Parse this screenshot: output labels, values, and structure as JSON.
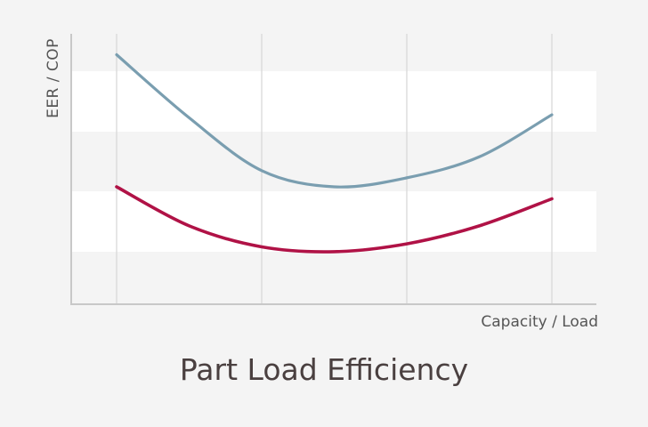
{
  "chart_data": {
    "type": "line",
    "title": "Part Load Efficiency",
    "xlabel": "Capacity / Load",
    "ylabel": "EER / COP",
    "xlim": [
      0,
      3
    ],
    "ylim": [
      0,
      4
    ],
    "grid": true,
    "x": [
      0,
      0.5,
      1,
      1.5,
      2,
      2.5,
      3
    ],
    "series": [
      {
        "values": [
          3.8,
          2.75,
          1.87,
          1.6,
          1.75,
          2.1,
          2.8
        ],
        "color": "#7a9eb0"
      },
      {
        "values": [
          1.6,
          0.95,
          0.6,
          0.52,
          0.65,
          0.95,
          1.4
        ],
        "color": "#b01246"
      }
    ]
  },
  "colors": {
    "background": "#f4f4f4",
    "band": "#ffffff",
    "axis": "#c8c8c8",
    "grid": "#d6d6d6",
    "text": "#555555",
    "title": "#4a4040"
  }
}
